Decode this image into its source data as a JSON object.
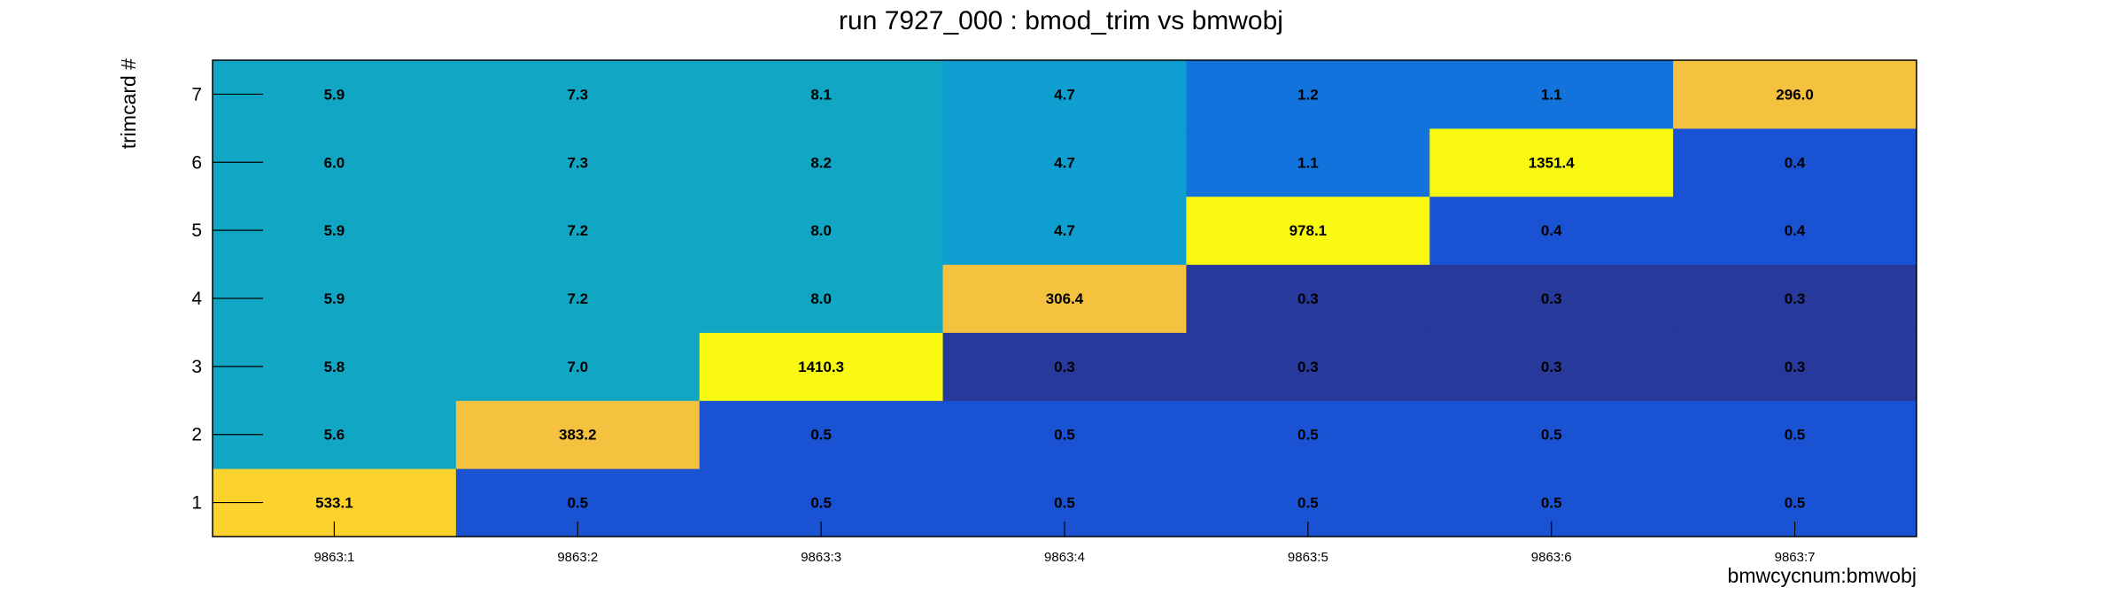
{
  "chart_data": {
    "type": "heatmap",
    "title": "run 7927_000 : bmod_trim vs bmwobj",
    "xlabel": "bmwcycnum:bmwobj",
    "ylabel": "trimcard #",
    "x_categories": [
      "9863:1",
      "9863:2",
      "9863:3",
      "9863:4",
      "9863:5",
      "9863:6",
      "9863:7"
    ],
    "y_categories": [
      "1",
      "2",
      "3",
      "4",
      "5",
      "6",
      "7"
    ],
    "values": [
      [
        533.1,
        0.5,
        0.5,
        0.5,
        0.5,
        0.5,
        0.5
      ],
      [
        5.6,
        383.2,
        0.5,
        0.5,
        0.5,
        0.5,
        0.5
      ],
      [
        5.8,
        7.0,
        1410.3,
        0.3,
        0.3,
        0.3,
        0.3
      ],
      [
        5.9,
        7.2,
        8.0,
        306.4,
        0.3,
        0.3,
        0.3
      ],
      [
        5.9,
        7.2,
        8.0,
        4.7,
        978.1,
        0.4,
        0.4
      ],
      [
        6.0,
        7.3,
        8.2,
        4.7,
        1.1,
        1351.4,
        0.4
      ],
      [
        5.9,
        7.3,
        8.1,
        4.7,
        1.2,
        1.1,
        296.0
      ]
    ],
    "colorscale": [
      "#27399b",
      "#1a52d4",
      "#1373dc",
      "#0f9ed0",
      "#10a6c4",
      "#f4c23e",
      "#fcd22c",
      "#f8f810"
    ]
  }
}
